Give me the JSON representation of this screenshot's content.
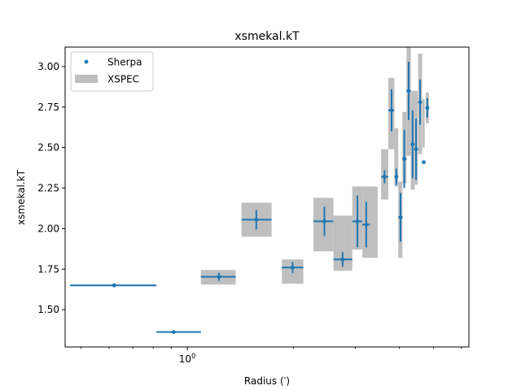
{
  "chart_data": {
    "type": "scatter",
    "title": "xsmekal.kT",
    "xlabel": "Radius (′)",
    "ylabel": "xsmekal.kT",
    "xscale": "log",
    "xlim": [
      0.45,
      6.3
    ],
    "ylim": [
      1.27,
      3.12
    ],
    "x_tick_labels": [
      {
        "value": 1.0,
        "label": "10",
        "exp": "0"
      }
    ],
    "y_ticks": [
      1.5,
      1.75,
      2.0,
      2.25,
      2.5,
      2.75,
      3.0
    ],
    "y_tick_labels": [
      "1.50",
      "1.75",
      "2.00",
      "2.25",
      "2.50",
      "2.75",
      "3.00"
    ],
    "legend_position": "top-left",
    "grid": false,
    "series": [
      {
        "name": "Sherpa",
        "style": "point-with-errorbars",
        "color": "#1f77b4",
        "points": [
          {
            "x": 0.62,
            "x_lo": 0.465,
            "x_hi": 0.817,
            "y": 1.65,
            "y_err": 0.012
          },
          {
            "x": 0.915,
            "x_lo": 0.817,
            "x_hi": 1.093,
            "y": 1.362,
            "y_err": 0.006
          },
          {
            "x": 1.23,
            "x_lo": 1.093,
            "x_hi": 1.372,
            "y": 1.703,
            "y_err": 0.025
          },
          {
            "x": 1.57,
            "x_lo": 1.425,
            "x_hi": 1.735,
            "y": 2.055,
            "y_err": 0.06
          },
          {
            "x": 1.99,
            "x_lo": 1.855,
            "x_hi": 2.135,
            "y": 1.76,
            "y_err": 0.035
          },
          {
            "x": 2.45,
            "x_lo": 2.28,
            "x_hi": 2.6,
            "y": 2.045,
            "y_err": 0.09
          },
          {
            "x": 2.76,
            "x_lo": 2.6,
            "x_hi": 2.94,
            "y": 1.81,
            "y_err": 0.045
          },
          {
            "x": 3.04,
            "x_lo": 2.94,
            "x_hi": 3.14,
            "y": 2.045,
            "y_err": 0.16
          },
          {
            "x": 3.22,
            "x_lo": 3.14,
            "x_hi": 3.3,
            "y": 2.025,
            "y_err": 0.14
          },
          {
            "x": 3.63,
            "x_lo": 3.55,
            "x_hi": 3.72,
            "y": 2.32,
            "y_err": 0.04
          },
          {
            "x": 3.8,
            "x_lo": 3.72,
            "x_hi": 3.87,
            "y": 2.73,
            "y_err": 0.13
          },
          {
            "x": 3.92,
            "x_lo": 3.87,
            "x_hi": 3.97,
            "y": 2.32,
            "y_err": 0.05
          },
          {
            "x": 4.03,
            "x_lo": 3.97,
            "x_hi": 4.08,
            "y": 2.07,
            "y_err": 0.15
          },
          {
            "x": 4.13,
            "x_lo": 4.08,
            "x_hi": 4.19,
            "y": 2.43,
            "y_err": 0.18
          },
          {
            "x": 4.25,
            "x_lo": 4.19,
            "x_hi": 4.31,
            "y": 2.85,
            "y_err": 0.18
          },
          {
            "x": 4.36,
            "x_lo": 4.31,
            "x_hi": 4.42,
            "y": 2.52,
            "y_err": 0.21
          },
          {
            "x": 4.46,
            "x_lo": 4.42,
            "x_hi": 4.51,
            "y": 2.49,
            "y_err": 0.19
          },
          {
            "x": 4.58,
            "x_lo": 4.52,
            "x_hi": 4.64,
            "y": 2.78,
            "y_err": 0.14
          },
          {
            "x": 4.69,
            "x_lo": 4.65,
            "x_hi": 4.72,
            "y": 2.41,
            "y_err": 0.0
          },
          {
            "x": 4.8,
            "x_lo": 4.75,
            "x_hi": 4.85,
            "y": 2.745,
            "y_err": 0.06
          }
        ]
      },
      {
        "name": "XSPEC",
        "style": "filled-box",
        "color": "#bfbfbf",
        "boxes": [
          {
            "x_lo": 0.465,
            "x_hi": 0.817,
            "y": 1.65,
            "y_lo": 1.645,
            "y_hi": 1.655
          },
          {
            "x_lo": 0.817,
            "x_hi": 1.093,
            "y": 1.362,
            "y_lo": 1.358,
            "y_hi": 1.366
          },
          {
            "x_lo": 1.093,
            "x_hi": 1.372,
            "y": 1.703,
            "y_lo": 1.655,
            "y_hi": 1.745
          },
          {
            "x_lo": 1.425,
            "x_hi": 1.735,
            "y": 2.055,
            "y_lo": 1.95,
            "y_hi": 2.16
          },
          {
            "x_lo": 1.855,
            "x_hi": 2.135,
            "y": 1.76,
            "y_lo": 1.66,
            "y_hi": 1.81
          },
          {
            "x_lo": 2.28,
            "x_hi": 2.6,
            "y": 2.045,
            "y_lo": 1.86,
            "y_hi": 2.19
          },
          {
            "x_lo": 2.6,
            "x_hi": 2.94,
            "y": 1.81,
            "y_lo": 1.74,
            "y_hi": 2.08
          },
          {
            "x_lo": 2.94,
            "x_hi": 3.14,
            "y": 2.045,
            "y_lo": 1.87,
            "y_hi": 2.26
          },
          {
            "x_lo": 3.14,
            "x_hi": 3.47,
            "y": 2.025,
            "y_lo": 1.82,
            "y_hi": 2.26
          },
          {
            "x_lo": 3.55,
            "x_hi": 3.72,
            "y": 2.32,
            "y_lo": 2.18,
            "y_hi": 2.49
          },
          {
            "x_lo": 3.72,
            "x_hi": 3.87,
            "y": 2.73,
            "y_lo": 2.49,
            "y_hi": 2.93
          },
          {
            "x_lo": 3.87,
            "x_hi": 3.97,
            "y": 2.32,
            "y_lo": 2.26,
            "y_hi": 2.62
          },
          {
            "x_lo": 3.97,
            "x_hi": 4.08,
            "y": 2.07,
            "y_lo": 1.82,
            "y_hi": 2.29
          },
          {
            "x_lo": 4.08,
            "x_hi": 4.19,
            "y": 2.43,
            "y_lo": 2.28,
            "y_hi": 2.72
          },
          {
            "x_lo": 4.19,
            "x_hi": 4.31,
            "y": 2.85,
            "y_lo": 2.45,
            "y_hi": 3.12
          },
          {
            "x_lo": 4.31,
            "x_hi": 4.42,
            "y": 2.52,
            "y_lo": 2.24,
            "y_hi": 2.85
          },
          {
            "x_lo": 4.42,
            "x_hi": 4.51,
            "y": 2.49,
            "y_lo": 2.27,
            "y_hi": 2.85
          },
          {
            "x_lo": 4.52,
            "x_hi": 4.64,
            "y": 2.78,
            "y_lo": 2.46,
            "y_hi": 3.08
          },
          {
            "x_lo": 4.65,
            "x_hi": 4.72,
            "y": 2.56,
            "y_lo": 2.5,
            "y_hi": 2.8
          },
          {
            "x_lo": 4.75,
            "x_hi": 4.85,
            "y": 2.745,
            "y_lo": 2.65,
            "y_hi": 2.84
          }
        ]
      }
    ]
  }
}
